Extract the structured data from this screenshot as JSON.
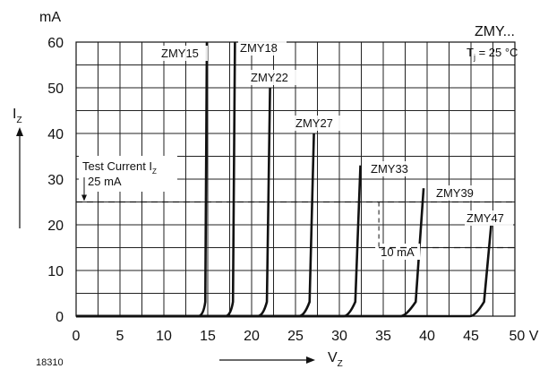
{
  "chart_data": {
    "type": "line",
    "title": "ZMY...",
    "figure_id": "18310",
    "annotation_tj": "T",
    "annotation_tj_sub": "j",
    "annotation_tj_value": " = 25 °C",
    "ylabel_unit": "mA",
    "ylabel": "I",
    "ylabel_sub": "Z",
    "xlabel": "V",
    "xlabel_sub": "Z",
    "xlim": [
      0,
      50
    ],
    "ylim": [
      0,
      60
    ],
    "x_ticks": [
      0,
      5,
      10,
      15,
      20,
      25,
      30,
      35,
      40,
      45
    ],
    "x_tick_last": "50 V",
    "y_ticks": [
      0,
      10,
      20,
      30,
      40,
      50,
      60
    ],
    "grid": true,
    "test_current_label": "Test Current I",
    "test_current_label_sub": "Z",
    "test_current_value_label": "25 mA",
    "test_current": 25,
    "delta_label": "10 mA",
    "series": [
      {
        "name": "ZMY15",
        "knee": 14.5,
        "x_at_top": 14.9,
        "i_max": 60
      },
      {
        "name": "ZMY18",
        "knee": 17.6,
        "x_at_top": 18.1,
        "i_max": 60
      },
      {
        "name": "ZMY22",
        "knee": 21.3,
        "x_at_top": 22.1,
        "i_max": 50
      },
      {
        "name": "ZMY27",
        "knee": 26.0,
        "x_at_top": 27.1,
        "i_max": 40
      },
      {
        "name": "ZMY33",
        "knee": 31.1,
        "x_at_top": 32.4,
        "i_max": 33
      },
      {
        "name": "ZMY39",
        "knee": 37.6,
        "x_at_top": 39.6,
        "i_max": 28
      },
      {
        "name": "ZMY47",
        "knee": 45.5,
        "x_at_top": 47.3,
        "i_max": 20
      }
    ]
  }
}
